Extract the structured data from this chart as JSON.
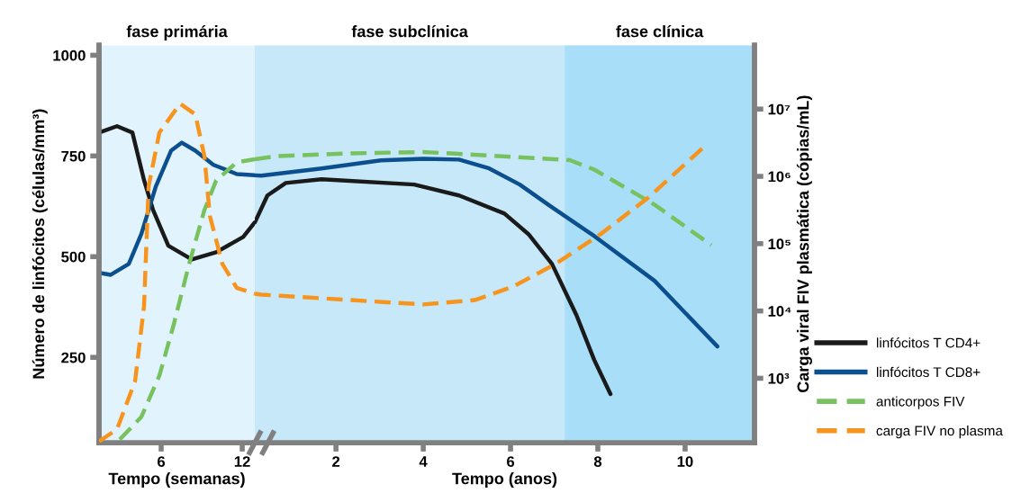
{
  "chart_data": [
    {
      "type": "line",
      "xlabel": "Tempo (semanas)",
      "ylabel": "Número de linfócitos (células/mm³)",
      "xlim": [
        1.4,
        12.93
      ],
      "xticks": [
        6,
        12
      ],
      "ylim": [
        38,
        1025
      ],
      "yticks": [
        250,
        500,
        750,
        1000
      ],
      "y2lim": [
        110,
        89000000
      ],
      "log": "y2",
      "bands": [
        {
          "axis": "x",
          "from": 1.4,
          "to": 12.93,
          "label": "fase primária",
          "color": "#e1f3fc"
        }
      ],
      "grid": false,
      "marker": "none",
      "series": [
        {
          "color": "#1a1a1a",
          "line_style": "solid",
          "axis": "y",
          "x": [
            1.4,
            2.73,
            3.87,
            4.73,
            5.4,
            6.53,
            8.27,
            10.07,
            12.07,
            12.93
          ],
          "values": [
            808,
            824,
            808,
            690,
            616,
            527,
            493,
            511,
            549,
            585
          ]
        },
        {
          "color": "#0b4f8f",
          "line_style": "solid",
          "axis": "y",
          "x": [
            1.4,
            2.27,
            3.6,
            4.53,
            5.6,
            6.73,
            7.53,
            8.53,
            9.87,
            11.6,
            12.93
          ],
          "values": [
            460,
            455,
            482,
            556,
            674,
            763,
            783,
            763,
            728,
            705,
            702
          ]
        },
        {
          "color": "#77c25e",
          "line_style": "dashed",
          "axis": "y2",
          "x": [
            2.93,
            4.53,
            5.87,
            6.93,
            8.07,
            9.2,
            10.07,
            11.6,
            12.93
          ],
          "values": [
            123,
            266,
            1096,
            6300,
            50000,
            316000,
            870000,
            1620000,
            1800000
          ]
        },
        {
          "color": "#f7941d",
          "line_style": "dashed",
          "axis": "y2",
          "x": [
            1.4,
            2.73,
            4.07,
            4.73,
            5.07,
            5.87,
            7.4,
            8.53,
            9.2,
            9.6,
            10.53,
            11.6,
            12.93
          ],
          "values": [
            115,
            174,
            910,
            11700,
            710000,
            4500000,
            12000000,
            8300000,
            2000000,
            260000,
            50000,
            22000,
            18000
          ]
        }
      ]
    },
    {
      "type": "line",
      "xlabel": "Tempo (anos)",
      "y2label": "Carga viral FIV plasmática (cópias/mL)",
      "xlim": [
        0.14,
        11.59
      ],
      "xticks": [
        2,
        4,
        6,
        8,
        10
      ],
      "ylim": [
        38,
        1025
      ],
      "y2lim": [
        110,
        89000000
      ],
      "log": "y2",
      "y2ticks": [
        {
          "value": 1000,
          "label": "10³"
        },
        {
          "value": 10000,
          "label": "10⁴"
        },
        {
          "value": 100000,
          "label": "10⁵"
        },
        {
          "value": 1000000,
          "label": "10⁶"
        },
        {
          "value": 10000000,
          "label": "10⁷"
        }
      ],
      "bands": [
        {
          "axis": "x",
          "from": 0.14,
          "to": 7.24,
          "label": "fase subclínica",
          "color": "#c6e8f9"
        },
        {
          "axis": "x",
          "from": 7.24,
          "to": 11.59,
          "label": "fase clínica",
          "color": "#a9def8"
        }
      ],
      "grid": false,
      "marker": "none",
      "legend": "bottom right",
      "series": [
        {
          "name": "linfócitos T CD4+",
          "color": "#1a1a1a",
          "line_style": "solid",
          "axis": "y",
          "x": [
            0.14,
            0.43,
            0.85,
            1.67,
            3.79,
            4.82,
            5.86,
            6.41,
            6.95,
            7.51,
            7.92,
            8.29
          ],
          "values": [
            585,
            652,
            683,
            692,
            679,
            652,
            607,
            556,
            482,
            355,
            243,
            159
          ]
        },
        {
          "name": "linfócitos T CD8+",
          "color": "#0b4f8f",
          "line_style": "solid",
          "axis": "y",
          "x": [
            0.14,
            0.29,
            1.67,
            3.03,
            4.0,
            4.82,
            5.51,
            6.21,
            6.89,
            7.92,
            9.3,
            10.74
          ],
          "values": [
            702,
            701,
            719,
            739,
            743,
            741,
            719,
            679,
            627,
            551,
            440,
            277
          ]
        },
        {
          "name": "anticorpos FIV",
          "color": "#77c25e",
          "line_style": "dashed",
          "axis": "y2",
          "x": [
            0.14,
            0.64,
            2.35,
            4.0,
            5.18,
            7.36,
            7.92,
            9.3,
            10.6
          ],
          "values": [
            1800000,
            2000000,
            2200000,
            2300000,
            2100000,
            1740000,
            1260000,
            380000,
            95000
          ]
        },
        {
          "name": "carga FIV no plasma",
          "color": "#f7941d",
          "line_style": "dashed",
          "axis": "y2",
          "x": [
            0.14,
            0.29,
            2.35,
            4.0,
            5.18,
            6.06,
            7.03,
            8.06,
            9.15,
            10.45
          ],
          "values": [
            18000,
            17500,
            14500,
            12500,
            14500,
            23000,
            50000,
            138000,
            480000,
            2800000
          ]
        }
      ]
    }
  ]
}
